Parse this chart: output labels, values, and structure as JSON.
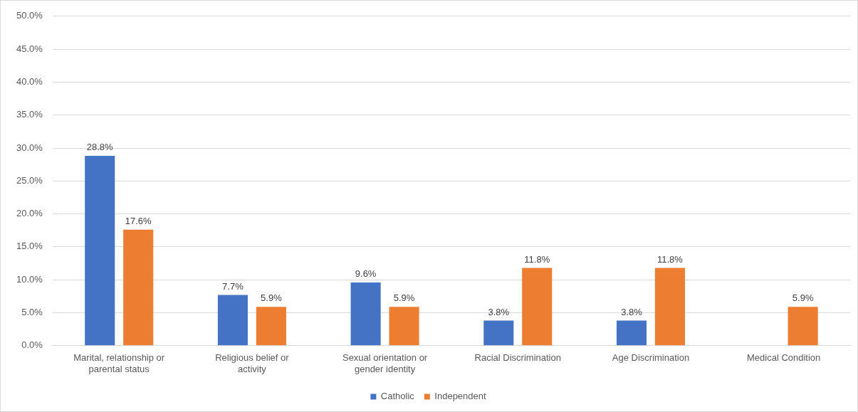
{
  "chart_data": {
    "type": "bar",
    "categories": [
      "Marital, relationship or parental status",
      "Religious belief or activity",
      "Sexual orientation or gender identity",
      "Racial Discrimination",
      "Age Discrimination",
      "Medical Condition"
    ],
    "series": [
      {
        "name": "Catholic",
        "color": "#4472c4",
        "values": [
          28.8,
          7.7,
          9.6,
          3.8,
          3.8,
          null
        ],
        "value_labels": [
          "28.8%",
          "7.7%",
          "9.6%",
          "3.8%",
          "3.8%",
          null
        ]
      },
      {
        "name": "Independent",
        "color": "#ed7d31",
        "values": [
          17.6,
          5.9,
          5.9,
          11.8,
          11.8,
          5.9
        ],
        "value_labels": [
          "17.6%",
          "5.9%",
          "5.9%",
          "11.8%",
          "11.8%",
          "5.9%"
        ]
      }
    ],
    "ylim": [
      0,
      50
    ],
    "yticks": [
      {
        "value": 0,
        "label": "0.0%"
      },
      {
        "value": 5,
        "label": "5.0%"
      },
      {
        "value": 10,
        "label": "10.0%"
      },
      {
        "value": 15,
        "label": "15.0%"
      },
      {
        "value": 20,
        "label": "20.0%"
      },
      {
        "value": 25,
        "label": "25.0%"
      },
      {
        "value": 30,
        "label": "30.0%"
      },
      {
        "value": 35,
        "label": "35.0%"
      },
      {
        "value": 40,
        "label": "40.0%"
      },
      {
        "value": 45,
        "label": "45.0%"
      },
      {
        "value": 50,
        "label": "50.0%"
      }
    ],
    "grid": "y",
    "legend": "bottom"
  }
}
